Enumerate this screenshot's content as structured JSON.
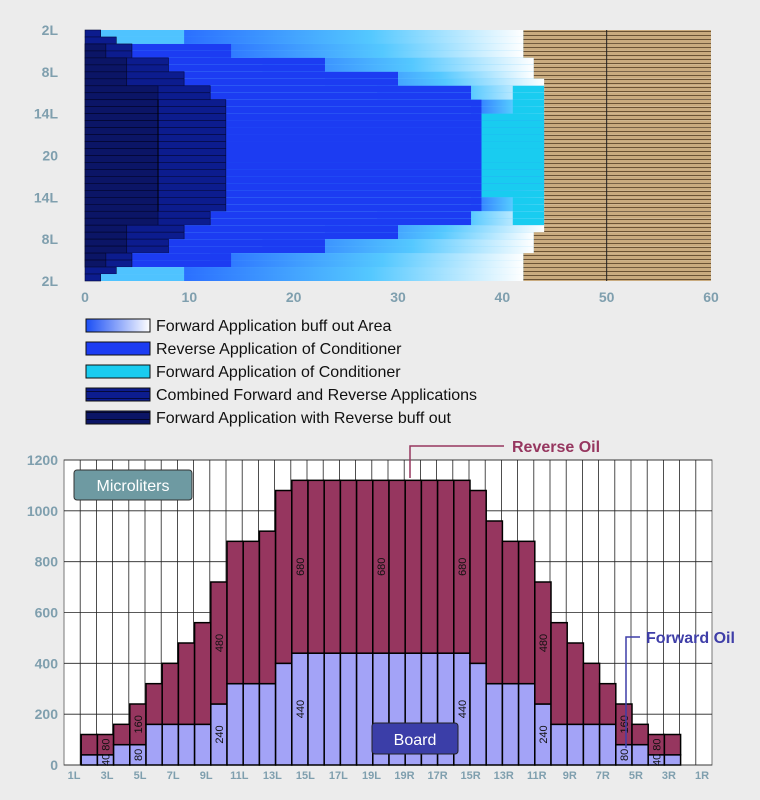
{
  "chart_data": [
    {
      "type": "bar",
      "orientation": "horizontal",
      "x_ticks": [
        "0",
        "10",
        "20",
        "30",
        "40",
        "50",
        "60"
      ],
      "xlim": [
        0,
        60
      ],
      "y_ticks": [
        "2L",
        "8L",
        "14L",
        "20",
        "14L",
        "8L",
        "2L"
      ],
      "legend_position": "bottom-left",
      "series": [
        {
          "name": "Forward Application buff out Area",
          "color": "#ffffff",
          "gradient_start": "#2b6fff",
          "extent": [
            10,
            42
          ]
        },
        {
          "name": "Reverse Application of Conditioner",
          "color": "#1c3cf2",
          "extent": [
            4,
            38
          ]
        },
        {
          "name": "Forward Application of Conditioner",
          "color": "#19ccf0",
          "extent": [
            38,
            44
          ]
        },
        {
          "name": "Combined Forward and Reverse Applications",
          "color": "#0c1c8e",
          "extent": [
            0,
            12
          ]
        },
        {
          "name": "Forward Application with Reverse buff out",
          "color": "#0b1566",
          "extent": [
            0,
            7
          ]
        }
      ],
      "board_region": {
        "color": "#c9ab7f",
        "extent": [
          42,
          60
        ],
        "line_at": 50
      }
    },
    {
      "type": "bar",
      "stacked": true,
      "title_box": "Microliters",
      "board_label": "Board",
      "callouts": {
        "reverse": "Reverse Oil",
        "forward": "Forward Oil"
      },
      "ylim": [
        0,
        1200
      ],
      "y_ticks": [
        "0",
        "200",
        "400",
        "600",
        "800",
        "1000",
        "1200"
      ],
      "x_tick_labels": [
        "1L",
        "3L",
        "5L",
        "7L",
        "9L",
        "11L",
        "13L",
        "15L",
        "17L",
        "19L",
        "19R",
        "17R",
        "15R",
        "13R",
        "11R",
        "9R",
        "7R",
        "5R",
        "3R",
        "1R"
      ],
      "series": [
        {
          "name": "Forward Oil",
          "color": "#a3a3f7",
          "values": [
            40,
            40,
            80,
            80,
            160,
            160,
            160,
            160,
            240,
            320,
            320,
            320,
            400,
            440,
            440,
            440,
            440,
            440,
            440,
            440,
            440,
            440,
            440,
            440,
            400,
            320,
            320,
            320,
            240,
            160,
            160,
            160,
            160,
            80,
            80,
            40,
            40
          ]
        },
        {
          "name": "Reverse Oil",
          "color": "#96365f",
          "values": [
            80,
            80,
            80,
            160,
            160,
            240,
            320,
            400,
            480,
            560,
            560,
            600,
            680,
            680,
            680,
            680,
            680,
            680,
            680,
            680,
            680,
            680,
            680,
            680,
            680,
            640,
            560,
            560,
            480,
            400,
            320,
            240,
            160,
            160,
            80,
            80,
            80
          ]
        }
      ],
      "bar_labels": [
        {
          "bar": 1,
          "text": "40"
        },
        {
          "bar": 1,
          "text": "80"
        },
        {
          "bar": 3,
          "text": "80"
        },
        {
          "bar": 3,
          "text": "160"
        },
        {
          "bar": 8,
          "text": "240"
        },
        {
          "bar": 8,
          "text": "480"
        },
        {
          "bar": 13,
          "text": "440"
        },
        {
          "bar": 13,
          "text": "680"
        },
        {
          "bar": 18,
          "text": "680"
        },
        {
          "bar": 23,
          "text": "440"
        },
        {
          "bar": 23,
          "text": "680"
        },
        {
          "bar": 28,
          "text": "240"
        },
        {
          "bar": 28,
          "text": "480"
        },
        {
          "bar": 33,
          "text": "80"
        },
        {
          "bar": 33,
          "text": "160"
        },
        {
          "bar": 35,
          "text": "40"
        },
        {
          "bar": 35,
          "text": "80"
        }
      ]
    }
  ]
}
